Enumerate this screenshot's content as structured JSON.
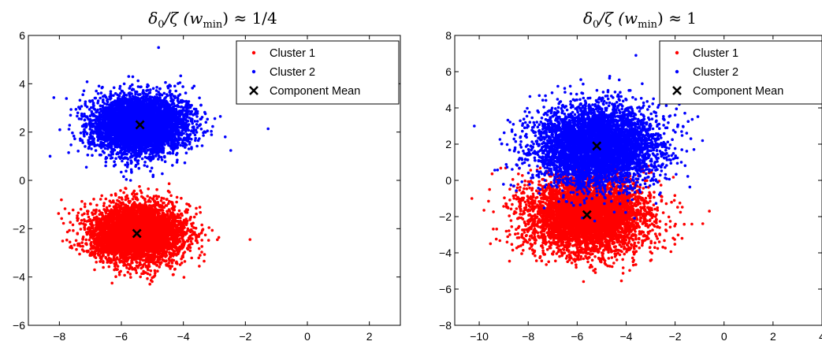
{
  "chart_data": [
    {
      "type": "scatter",
      "title": "δ0/ζ (wmin) ≈ 1/4",
      "title_parts": {
        "delta": "δ",
        "delta_sub": "0",
        "zeta": "/ζ (",
        "w": "w",
        "w_sub": "min",
        "tail": ") ≈ 1/4"
      },
      "xlim": [
        -9,
        3
      ],
      "ylim": [
        -6,
        6
      ],
      "xticks": [
        -8,
        -6,
        -4,
        -2,
        0,
        2
      ],
      "yticks": [
        -6,
        -4,
        -2,
        0,
        2,
        4,
        6
      ],
      "xtick_labels": [
        "−8",
        "−6",
        "−4",
        "−2",
        "0",
        "2"
      ],
      "ytick_labels": [
        "−6",
        "−4",
        "−2",
        "0",
        "2",
        "4",
        "6"
      ],
      "legend_position": "top-right",
      "series": [
        {
          "name": "Cluster 1",
          "color": "#ff0000",
          "center": [
            -5.5,
            -2.2
          ],
          "std": [
            0.75,
            0.6
          ],
          "n": 5000
        },
        {
          "name": "Cluster 2",
          "color": "#0000ff",
          "center": [
            -5.4,
            2.3
          ],
          "std": [
            0.75,
            0.6
          ],
          "n": 5000
        }
      ],
      "means": {
        "name": "Component Mean",
        "color": "#000000",
        "marker": "x",
        "points": [
          [
            -5.5,
            -2.2
          ],
          [
            -5.4,
            2.3
          ]
        ]
      },
      "outliers": [
        [
          -1.85,
          -2.45
        ],
        [
          -2.65,
          1.8
        ],
        [
          -8.3,
          1.0
        ],
        [
          -4.8,
          5.5
        ]
      ]
    },
    {
      "type": "scatter",
      "title": "δ0/ζ (wmin) ≈ 1",
      "title_parts": {
        "delta": "δ",
        "delta_sub": "0",
        "zeta": "/ζ (",
        "w": "w",
        "w_sub": "min",
        "tail": ") ≈ 1"
      },
      "xlim": [
        -11,
        4
      ],
      "ylim": [
        -8,
        8
      ],
      "xticks": [
        -10,
        -8,
        -6,
        -4,
        -2,
        0,
        2,
        4
      ],
      "yticks": [
        -8,
        -6,
        -4,
        -2,
        0,
        2,
        4,
        6,
        8
      ],
      "xtick_labels": [
        "−10",
        "−8",
        "−6",
        "−4",
        "−2",
        "0",
        "2",
        "4"
      ],
      "ytick_labels": [
        "−8",
        "−6",
        "−4",
        "−2",
        "0",
        "2",
        "4",
        "6",
        "8"
      ],
      "legend_position": "top-right",
      "series": [
        {
          "name": "Cluster 1",
          "color": "#ff0000",
          "center": [
            -5.6,
            -1.9
          ],
          "std": [
            1.25,
            1.05
          ],
          "n": 5000
        },
        {
          "name": "Cluster 2",
          "color": "#0000ff",
          "center": [
            -5.2,
            1.9
          ],
          "std": [
            1.25,
            1.1
          ],
          "n": 5000
        }
      ],
      "means": {
        "name": "Component Mean",
        "color": "#000000",
        "marker": "x",
        "points": [
          [
            -5.6,
            -1.9
          ],
          [
            -5.2,
            1.9
          ]
        ]
      },
      "outliers": [
        [
          -10.3,
          -1.0
        ],
        [
          -0.6,
          -1.7
        ],
        [
          -3.6,
          6.9
        ],
        [
          -10.2,
          3.0
        ]
      ]
    }
  ]
}
